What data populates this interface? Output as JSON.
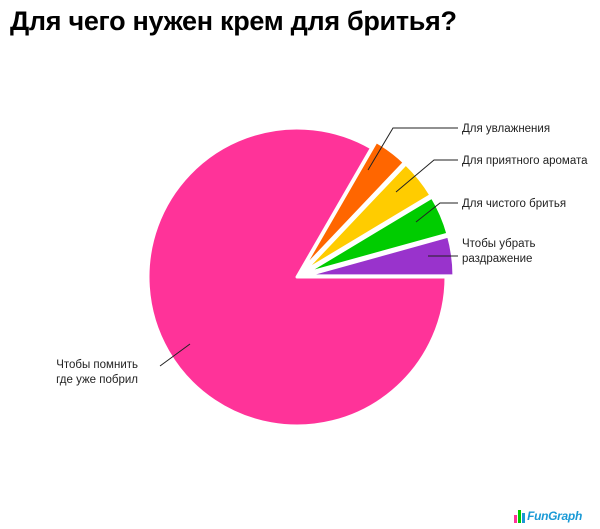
{
  "chart_data": {
    "type": "pie",
    "title": "Для чего нужен крем для бритья?",
    "slices": [
      {
        "label": "Чтобы помнить где уже побрил",
        "label_lines": [
          "Чтобы помнить",
          "где уже побрил"
        ],
        "value": 85,
        "color": "#ff3399"
      },
      {
        "label": "Для увлажнения",
        "label_lines": [
          "Для увлажнения"
        ],
        "value": 4,
        "color": "#9933cc"
      },
      {
        "label": "Для приятного аромата",
        "label_lines": [
          "Для приятного аромата"
        ],
        "value": 4,
        "color": "#00cc00"
      },
      {
        "label": "Для чистого бритья",
        "label_lines": [
          "Для чистого бритья"
        ],
        "value": 4,
        "color": "#ffcc00"
      },
      {
        "label": "Чтобы убрать раздражение",
        "label_lines": [
          "Чтобы убрать",
          "раздражение"
        ],
        "value": 3,
        "color": "#ff6600"
      }
    ]
  },
  "brand": {
    "name": "FunGraph",
    "icon_colors": [
      "#ff3399",
      "#00cc00",
      "#1a9ad6"
    ]
  }
}
